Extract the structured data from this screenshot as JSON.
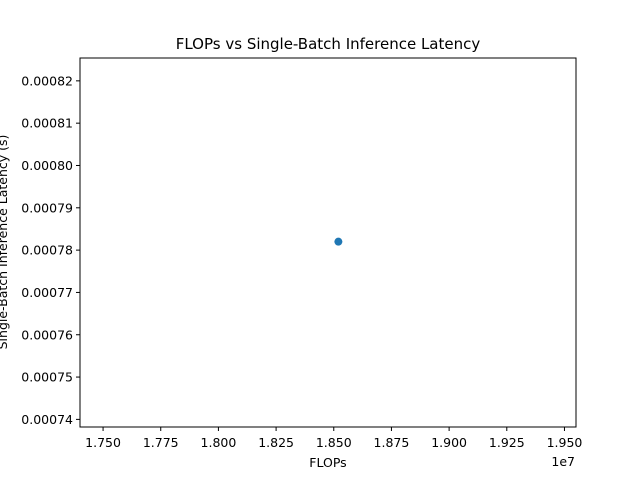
{
  "chart_data": {
    "type": "scatter",
    "title": "FLOPs vs Single-Batch Inference Latency",
    "xlabel": "FLOPs",
    "ylabel": "Single-Batch Inference Latency (s)",
    "x_offset_label": "1e7",
    "xlim": [
      17400000,
      19550000
    ],
    "ylim": [
      0.0007382,
      0.0008254
    ],
    "x_ticks": [
      17500000,
      17750000,
      18000000,
      18250000,
      18500000,
      18750000,
      19000000,
      19250000,
      19500000
    ],
    "x_tick_labels": [
      "1.750",
      "1.775",
      "1.800",
      "1.825",
      "1.850",
      "1.875",
      "1.900",
      "1.925",
      "1.950"
    ],
    "y_ticks": [
      0.00074,
      0.00075,
      0.00076,
      0.00077,
      0.00078,
      0.00079,
      0.0008,
      0.00081,
      0.00082
    ],
    "y_tick_labels": [
      "0.00074",
      "0.00075",
      "0.00076",
      "0.00077",
      "0.00078",
      "0.00079",
      "0.00080",
      "0.00081",
      "0.00082"
    ],
    "series": [
      {
        "x": [
          18520000
        ],
        "y": [
          0.000782
        ]
      }
    ],
    "colors": {
      "marker": "#1f77b4",
      "axes": "#000000",
      "background": "#ffffff"
    },
    "grid": false,
    "legend": "none"
  }
}
